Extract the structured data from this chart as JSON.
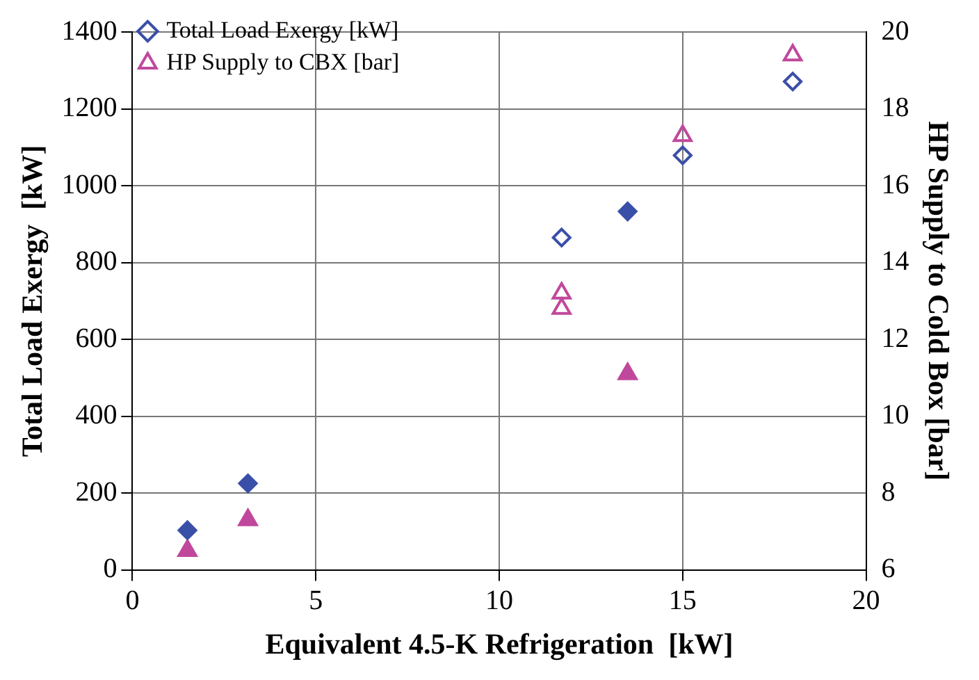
{
  "chart_data": {
    "type": "scatter",
    "xlabel": "Equivalent 4.5-K Refrigeration  [kW]",
    "ylabel": "Total Load Exergy  [kW]",
    "y2label": "HP Supply to Cold Box [bar]",
    "xlim": [
      0,
      20
    ],
    "xticks": [
      0,
      5,
      10,
      15,
      20
    ],
    "ylim": [
      0,
      1400
    ],
    "yticks": [
      0,
      200,
      400,
      600,
      800,
      1000,
      1200,
      1400
    ],
    "y2lim": [
      6,
      20
    ],
    "y2ticks": [
      6,
      8,
      10,
      12,
      14,
      16,
      18,
      20
    ],
    "grid": true,
    "legend": "top left",
    "series": [
      {
        "name": "Total Load Exergy [kW]",
        "color": "#3a4fa8",
        "marker": "diamond",
        "x": [
          11.7,
          15,
          18
        ],
        "values": [
          865,
          1079,
          1271
        ]
      },
      {
        "name": "HP Supply to CBX [bar]",
        "color": "#c0489c",
        "marker": "triangle",
        "axis": "y2",
        "x": [
          11.7,
          11.7,
          15,
          18
        ],
        "values": [
          13.2,
          12.8,
          17.3,
          19.4
        ]
      },
      {
        "color": "#3a4fa8",
        "marker": "diamond",
        "x": [
          1.5,
          3.15,
          13.5
        ],
        "values": [
          103,
          225,
          933
        ]
      },
      {
        "color": "#c0489c",
        "marker": "triangle",
        "axis": "y2",
        "x": [
          1.5,
          3.15,
          13.5
        ],
        "values": [
          6.5,
          7.3,
          11.1
        ]
      }
    ]
  }
}
